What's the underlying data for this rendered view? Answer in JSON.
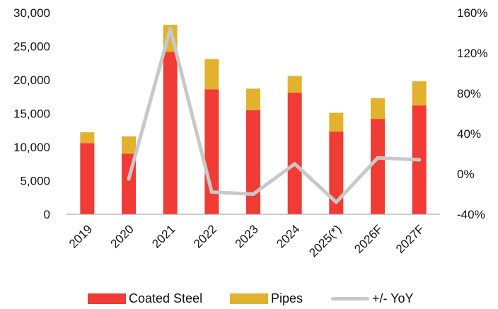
{
  "chart_data": {
    "type": "bar",
    "stacked": true,
    "categories": [
      "2019",
      "2020",
      "2021",
      "2022",
      "2023",
      "2024",
      "2025(*)",
      "2026F",
      "2027F"
    ],
    "series": [
      {
        "name": "Coated Steel",
        "type": "bar",
        "axis": "left",
        "color": "#f03c34",
        "values": [
          10600,
          9000,
          24200,
          18600,
          15500,
          18100,
          12300,
          14200,
          16200
        ]
      },
      {
        "name": "Pipes",
        "type": "bar",
        "axis": "left",
        "color": "#e2b22e",
        "values": [
          1600,
          2600,
          4000,
          4500,
          3200,
          2500,
          2800,
          3100,
          3600
        ]
      },
      {
        "name": "+/- YoY",
        "type": "line",
        "axis": "right",
        "color": "#c8c8c8",
        "values": [
          null,
          -5,
          144,
          -18,
          -20,
          10,
          -28,
          16,
          14
        ]
      }
    ],
    "y_left": {
      "min": 0,
      "max": 30000,
      "ticks": [
        "0",
        "5,000",
        "10,000",
        "15,000",
        "20,000",
        "25,000",
        "30,000"
      ],
      "tick_values": [
        0,
        5000,
        10000,
        15000,
        20000,
        25000,
        30000
      ]
    },
    "y_right": {
      "min": -40,
      "max": 160,
      "ticks": [
        "-40%",
        "0%",
        "40%",
        "80%",
        "120%",
        "160%"
      ],
      "tick_values": [
        -40,
        0,
        40,
        80,
        120,
        160
      ]
    },
    "legend": {
      "position": "bottom",
      "items": [
        "Coated Steel",
        "Pipes",
        "+/- YoY"
      ]
    },
    "grid": false
  }
}
